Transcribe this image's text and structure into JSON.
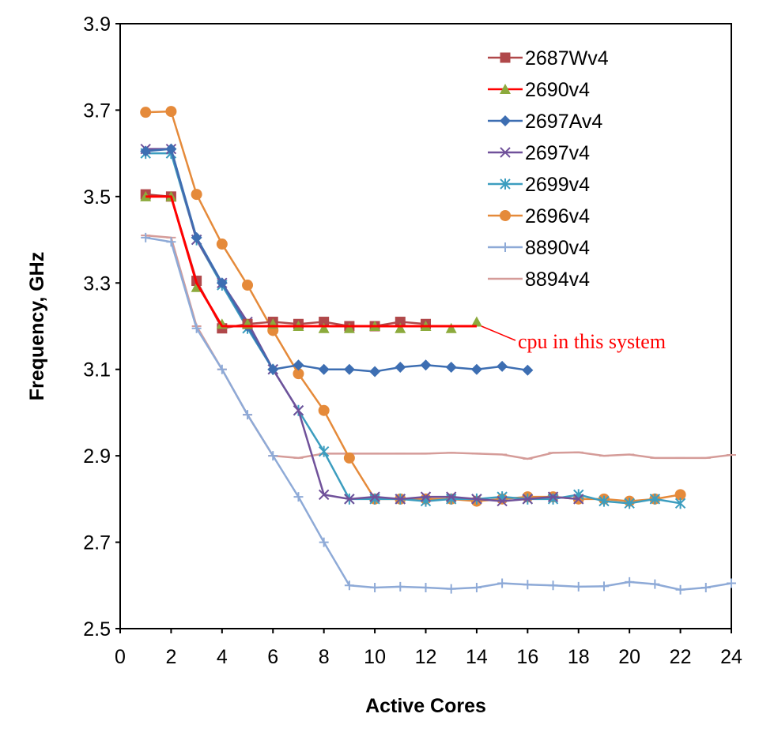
{
  "chart_data": {
    "type": "line",
    "title": "",
    "xlabel": "Active Cores",
    "ylabel": "Frequency, GHz",
    "xlim": [
      0,
      24
    ],
    "ylim": [
      2.5,
      3.9
    ],
    "xticks": [
      0,
      2,
      4,
      6,
      8,
      10,
      12,
      14,
      16,
      18,
      20,
      22,
      24
    ],
    "yticks": [
      2.5,
      2.7,
      2.9,
      3.1,
      3.3,
      3.5,
      3.7,
      3.9
    ],
    "grid": false,
    "legend_position": "top-right",
    "annotation": {
      "text": "cpu in this system",
      "color": "#ff0000",
      "points_to": {
        "series": "2690v4",
        "x": 14,
        "y": 3.2
      }
    },
    "series": [
      {
        "name": "2687Wv4",
        "color": "#b0484a",
        "marker": "square",
        "x": [
          1,
          2,
          3,
          4,
          5,
          6,
          7,
          8,
          9,
          10,
          11,
          12
        ],
        "y": [
          3.505,
          3.5,
          3.305,
          3.195,
          3.205,
          3.21,
          3.205,
          3.21,
          3.2,
          3.2,
          3.21,
          3.205
        ]
      },
      {
        "name": "2690v4",
        "color": "#ff0000",
        "marker": "none",
        "x": [
          1,
          2,
          3,
          4,
          5,
          6,
          7,
          8,
          9,
          10,
          11,
          12,
          13,
          14
        ],
        "y": [
          3.5,
          3.5,
          3.3,
          3.2,
          3.2,
          3.2,
          3.2,
          3.2,
          3.2,
          3.2,
          3.2,
          3.2,
          3.2,
          3.2
        ]
      },
      {
        "name": "2690v4-markers",
        "color": "#8caa3c",
        "marker": "triangle",
        "legend_hidden": true,
        "x": [
          1,
          2,
          3,
          4,
          5,
          6,
          7,
          8,
          9,
          10,
          11,
          12,
          13,
          14
        ],
        "y": [
          3.5,
          3.5,
          3.29,
          3.205,
          3.205,
          3.205,
          3.2,
          3.195,
          3.195,
          3.2,
          3.195,
          3.2,
          3.195,
          3.21
        ]
      },
      {
        "name": "2697Av4",
        "color": "#3d6eb2",
        "marker": "diamond",
        "x": [
          1,
          2,
          3,
          4,
          5,
          6,
          7,
          8,
          9,
          10,
          11,
          12,
          13,
          14,
          15,
          16
        ],
        "y": [
          3.605,
          3.61,
          3.405,
          3.3,
          3.2,
          3.1,
          3.11,
          3.1,
          3.1,
          3.095,
          3.105,
          3.11,
          3.105,
          3.1,
          3.107,
          3.098
        ]
      },
      {
        "name": "2697v4",
        "color": "#70519a",
        "marker": "x",
        "x": [
          1,
          2,
          3,
          4,
          5,
          6,
          7,
          8,
          9,
          10,
          11,
          12,
          13,
          14,
          15,
          16,
          17,
          18
        ],
        "y": [
          3.61,
          3.61,
          3.4,
          3.3,
          3.21,
          3.1,
          3.005,
          2.81,
          2.8,
          2.805,
          2.8,
          2.805,
          2.805,
          2.8,
          2.795,
          2.8,
          2.805,
          2.8
        ]
      },
      {
        "name": "2699v4",
        "color": "#3c9dbf",
        "marker": "star",
        "x": [
          1,
          2,
          3,
          4,
          5,
          6,
          7,
          8,
          9,
          10,
          11,
          12,
          13,
          14,
          15,
          16,
          17,
          18,
          19,
          20,
          21,
          22
        ],
        "y": [
          3.6,
          3.6,
          3.4,
          3.295,
          3.195,
          3.1,
          3.005,
          2.91,
          2.8,
          2.8,
          2.8,
          2.795,
          2.8,
          2.8,
          2.805,
          2.8,
          2.8,
          2.81,
          2.795,
          2.79,
          2.8,
          2.79
        ]
      },
      {
        "name": "2696v4",
        "color": "#e58a3a",
        "marker": "circle",
        "x": [
          1,
          2,
          3,
          4,
          5,
          6,
          7,
          8,
          9,
          10,
          11,
          12,
          13,
          14,
          15,
          16,
          17,
          18,
          19,
          20,
          21,
          22
        ],
        "y": [
          3.695,
          3.697,
          3.505,
          3.39,
          3.295,
          3.19,
          3.09,
          3.005,
          2.895,
          2.8,
          2.8,
          2.8,
          2.8,
          2.795,
          2.8,
          2.805,
          2.805,
          2.8,
          2.8,
          2.795,
          2.8,
          2.81
        ]
      },
      {
        "name": "8890v4",
        "color": "#8eaad7",
        "marker": "plus",
        "x": [
          1,
          2,
          3,
          4,
          5,
          6,
          7,
          8,
          9,
          10,
          11,
          12,
          13,
          14,
          15,
          16,
          17,
          18,
          19,
          20,
          21,
          22,
          23,
          24
        ],
        "y": [
          3.405,
          3.395,
          3.195,
          3.1,
          2.995,
          2.9,
          2.805,
          2.7,
          2.6,
          2.595,
          2.597,
          2.595,
          2.592,
          2.595,
          2.605,
          2.602,
          2.6,
          2.597,
          2.598,
          2.608,
          2.603,
          2.59,
          2.595,
          2.605
        ]
      },
      {
        "name": "8894v4",
        "color": "#d59c99",
        "marker": "dash",
        "x": [
          1,
          2,
          3,
          4,
          5,
          6,
          7,
          8,
          9,
          10,
          11,
          12,
          13,
          14,
          15,
          16,
          17,
          18,
          19,
          20,
          21,
          22,
          23,
          24
        ],
        "y": [
          3.41,
          3.405,
          3.2,
          3.1,
          2.995,
          2.9,
          2.895,
          2.905,
          2.905,
          2.905,
          2.905,
          2.905,
          2.907,
          2.905,
          2.903,
          2.893,
          2.907,
          2.908,
          2.9,
          2.903,
          2.895,
          2.895,
          2.895,
          2.902
        ]
      }
    ]
  }
}
